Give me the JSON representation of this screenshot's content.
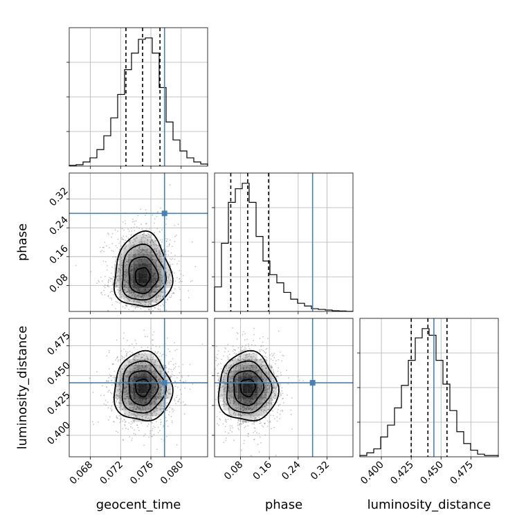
{
  "chart_data": {
    "type": "corner",
    "parameters": [
      "geocent_time",
      "phase",
      "luminosity_distance"
    ],
    "truths": {
      "geocent_time": 0.0778,
      "phase": 0.28,
      "luminosity_distance": 0.444
    },
    "colors": {
      "truth": "#4682b4",
      "hist": "#000000",
      "grid": "#b0b0b0",
      "density": "#000000",
      "points": "#7f7f7f"
    },
    "grid": true,
    "ranges": {
      "geocent_time": [
        0.0652,
        0.0835
      ],
      "phase": [
        0.008,
        0.392
      ],
      "luminosity_distance": [
        0.382,
        0.498
      ]
    },
    "ticks": {
      "geocent_time": {
        "values": [
          0.068,
          0.072,
          0.076,
          0.08
        ],
        "labels": [
          "0.068",
          "0.072",
          "0.076",
          "0.080"
        ]
      },
      "phase": {
        "values": [
          0.08,
          0.16,
          0.24,
          0.32
        ],
        "labels": [
          "0.08",
          "0.16",
          "0.24",
          "0.32"
        ]
      },
      "luminosity_distance": {
        "values": [
          0.4,
          0.425,
          0.45,
          0.475
        ],
        "labels": [
          "0.400",
          "0.425",
          "0.450",
          "0.475"
        ]
      }
    },
    "quantiles": {
      "geocent_time": [
        0.0727,
        0.0749,
        0.0772
      ],
      "phase": [
        0.053,
        0.1,
        0.158
      ],
      "luminosity_distance": [
        0.425,
        0.439,
        0.455
      ]
    },
    "histograms": {
      "geocent_time": {
        "edges_start": 0.0652,
        "bin_width": 0.000915,
        "counts": [
          0.5,
          1,
          3,
          6,
          12,
          22,
          35,
          52,
          70,
          82,
          92,
          93,
          82,
          57,
          32,
          19,
          11,
          6,
          3,
          1.5
        ]
      },
      "phase": {
        "edges_start": 0.008,
        "bin_width": 0.0192,
        "counts": [
          18,
          50,
          80,
          90,
          94,
          80,
          55,
          37,
          27,
          21,
          14,
          9,
          6,
          4,
          2,
          1.5,
          1,
          0.5,
          0.3,
          0.1
        ]
      },
      "luminosity_distance": {
        "edges_start": 0.382,
        "bin_width": 0.0058,
        "counts": [
          1,
          3,
          6,
          15,
          24,
          37,
          54,
          73,
          90,
          97,
          92,
          73,
          55,
          35,
          19,
          10,
          5,
          2,
          1,
          1
        ]
      }
    },
    "densities": {
      "phase_vs_geocent_time": {
        "center": [
          0.0749,
          0.1
        ],
        "sigma": [
          0.0019,
          0.041
        ],
        "contour_levels_sigma": [
          0.5,
          1.0,
          1.5,
          2.0
        ]
      },
      "luminosity_distance_vs_geocent_time": {
        "center": [
          0.0749,
          0.44
        ],
        "sigma": [
          0.0019,
          0.0145
        ],
        "contour_levels_sigma": [
          0.5,
          1.0,
          1.5,
          2.0
        ]
      },
      "luminosity_distance_vs_phase": {
        "center": [
          0.1,
          0.44
        ],
        "sigma": [
          0.041,
          0.0145
        ],
        "contour_levels_sigma": [
          0.5,
          1.0,
          1.5,
          2.0
        ]
      }
    }
  }
}
